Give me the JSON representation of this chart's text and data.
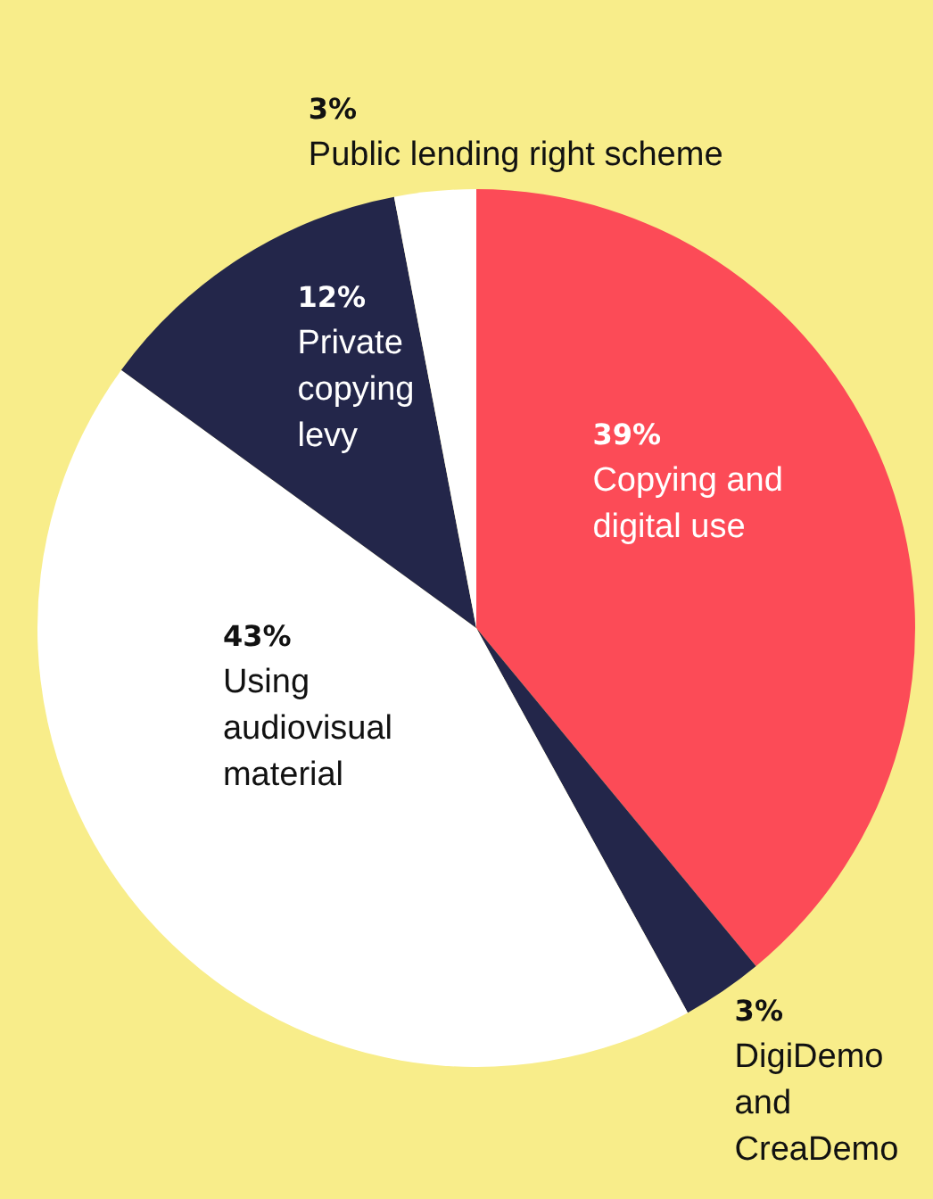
{
  "chart_data": {
    "type": "pie",
    "categories": [
      "Copying and digital use",
      "DigiDemo and CreaDemo",
      "Using audiovisual material",
      "Private copying levy",
      "Public lending right scheme"
    ],
    "values": [
      39,
      3,
      43,
      12,
      3
    ],
    "colors": [
      "#fc4b57",
      "#23264a",
      "#ffffff",
      "#23264a",
      "#ffffff"
    ],
    "value_labels": [
      "39%",
      "3%",
      "43%",
      "12%",
      "3%"
    ],
    "legend": false
  }
}
